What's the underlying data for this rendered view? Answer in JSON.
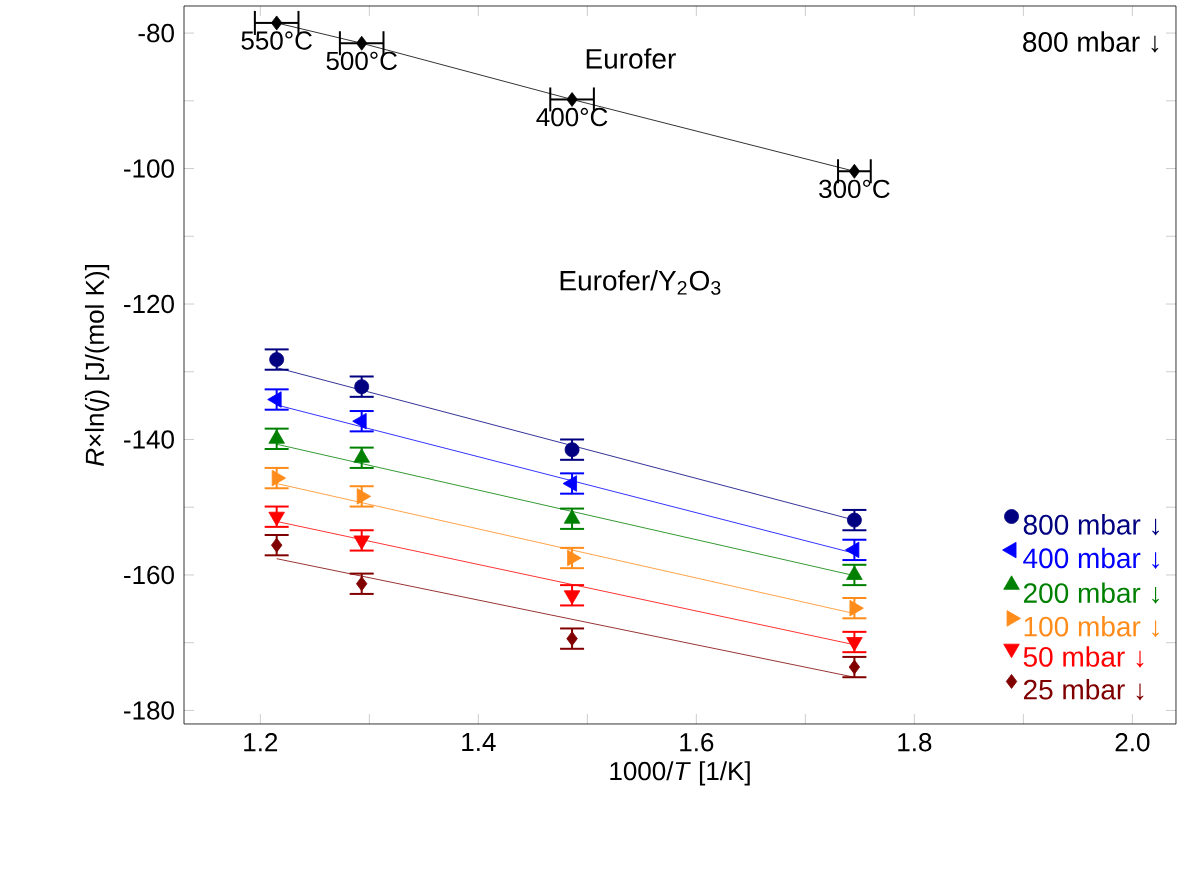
{
  "chart_data": {
    "type": "scatter",
    "xlabel": "1000/*T* [1/K]",
    "ylabel": "*R*×ln(*j*) [J/(mol K)]",
    "xlim": [
      1.13,
      2.04
    ],
    "ylim": [
      -182,
      -76
    ],
    "xticks": [
      1.2,
      {
        "value": 1.3,
        "label": null
      },
      1.4,
      {
        "value": 1.5,
        "label": null
      },
      1.6,
      {
        "value": 1.7,
        "label": null
      },
      1.8,
      {
        "value": 1.9,
        "label": null
      },
      {
        "value": 2.0,
        "label": "2.0"
      }
    ],
    "yticks": [
      -180,
      {
        "value": -170,
        "label": null
      },
      -160,
      {
        "value": -150,
        "label": null
      },
      -140,
      {
        "value": -130,
        "label": null
      },
      -120,
      {
        "value": -110,
        "label": null
      },
      -100,
      {
        "value": -90,
        "label": null
      },
      -80
    ],
    "legend": "bottom right",
    "annotations": [
      "800 mbar ↓",
      "Eurofer/Y$_{2}$O$_{3}$",
      {
        "text": "550°C",
        "x": 1.215,
        "y": -78.5
      },
      {
        "text": "500°C",
        "x": 1.293,
        "y": -81.5
      },
      {
        "text": "400°C",
        "x": 1.486,
        "y": -89.8
      },
      {
        "text": "300°C",
        "x": 1.745,
        "y": -100.4
      }
    ],
    "series": [
      {
        "name": "Eurofer",
        "type": "line",
        "color": "#000000",
        "marker": "diamond",
        "x": [
          1.215,
          1.293,
          1.486,
          1.745
        ],
        "values": [
          -78.5,
          -81.5,
          -89.8,
          -100.4
        ],
        "xerrors": [
          0.02,
          0.02,
          0.02,
          0.015
        ]
      },
      {
        "name": "800 mbar ↓",
        "color": "#000080",
        "marker": "circle",
        "x": [
          1.215,
          1.293,
          1.486,
          1.745
        ],
        "values": [
          -128.2,
          -132.2,
          -141.5,
          -151.9
        ],
        "errors": [
          1.5,
          1.5,
          1.5,
          1.5
        ]
      },
      {
        "name": "400 mbar ↓",
        "color": "#0000ff",
        "marker": "triangle-left",
        "x": [
          1.215,
          1.293,
          1.486,
          1.745
        ],
        "values": [
          -134.1,
          -137.3,
          -146.5,
          -156.3
        ],
        "errors": [
          1.5,
          1.5,
          1.5,
          1.5
        ]
      },
      {
        "name": "200 mbar ↓",
        "color": "#008000",
        "marker": "triangle",
        "x": [
          1.215,
          1.293,
          1.486,
          1.745
        ],
        "values": [
          -139.9,
          -142.7,
          -151.7,
          -160.0
        ],
        "errors": [
          1.5,
          1.5,
          1.5,
          1.5
        ]
      },
      {
        "name": "100 mbar ↓",
        "color": "#ff8c1a",
        "marker": "triangle-right",
        "x": [
          1.215,
          1.293,
          1.486,
          1.745
        ],
        "values": [
          -145.7,
          -148.4,
          -157.5,
          -164.9
        ],
        "errors": [
          1.5,
          1.5,
          1.5,
          1.5
        ]
      },
      {
        "name": "50 mbar ↓",
        "color": "#ff0000",
        "marker": "triangle-down",
        "x": [
          1.215,
          1.293,
          1.486,
          1.745
        ],
        "values": [
          -151.4,
          -154.9,
          -163.0,
          -169.9
        ],
        "errors": [
          1.5,
          1.5,
          1.5,
          1.5
        ]
      },
      {
        "name": "25 mbar ↓",
        "color": "#800000",
        "marker": "diamond",
        "x": [
          1.215,
          1.293,
          1.486,
          1.745
        ],
        "values": [
          -155.6,
          -161.3,
          -169.4,
          -173.6
        ],
        "errors": [
          1.5,
          1.5,
          1.5,
          1.5
        ]
      },
      {
        "type": "line",
        "color": "#000080",
        "marker": "none",
        "x": [
          1.215,
          1.745
        ],
        "values": [
          -129.4,
          -151.9
        ]
      },
      {
        "type": "line",
        "color": "#0000ff",
        "marker": "none",
        "x": [
          1.215,
          1.745
        ],
        "values": [
          -134.9,
          -156.8
        ]
      },
      {
        "type": "line",
        "color": "#008000",
        "marker": "none",
        "x": [
          1.215,
          1.745
        ],
        "values": [
          -140.7,
          -160.1
        ]
      },
      {
        "type": "line",
        "color": "#ff8c1a",
        "marker": "none",
        "x": [
          1.215,
          1.745
        ],
        "values": [
          -146.5,
          -165.7
        ]
      },
      {
        "type": "line",
        "color": "#ff0000",
        "marker": "none",
        "x": [
          1.215,
          1.745
        ],
        "values": [
          -152.1,
          -170.3
        ]
      },
      {
        "type": "line",
        "color": "#800000",
        "marker": "none",
        "x": [
          1.215,
          1.745
        ],
        "values": [
          -157.6,
          -175.1
        ]
      }
    ]
  }
}
